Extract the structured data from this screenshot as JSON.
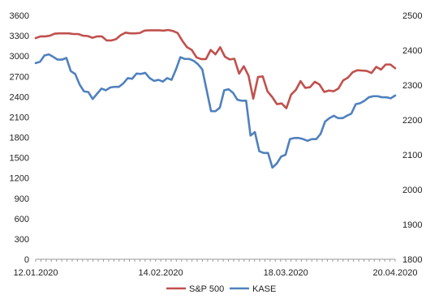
{
  "chart_data": {
    "type": "line",
    "x_tick_labels": [
      "12.01.2020",
      "14.02.2020",
      "18.03.2020",
      "20.04.2020"
    ],
    "x_tick_index": [
      0,
      24,
      48,
      69
    ],
    "y_left": {
      "ylim": [
        0,
        3600
      ],
      "ticks": [
        0,
        300,
        600,
        900,
        1200,
        1500,
        1800,
        2100,
        2400,
        2700,
        3000,
        3300,
        3600
      ]
    },
    "y_right": {
      "ylim": [
        1800,
        2500
      ],
      "ticks": [
        1800,
        1900,
        2000,
        2100,
        2200,
        2300,
        2400,
        2500
      ]
    },
    "legend_position": "bottom-center",
    "grid": false,
    "series": [
      {
        "name": "S&P 500",
        "axis": "left",
        "color": "#c0504d",
        "values": [
          3265,
          3290,
          3290,
          3300,
          3330,
          3335,
          3335,
          3335,
          3325,
          3325,
          3300,
          3295,
          3270,
          3290,
          3290,
          3230,
          3230,
          3250,
          3310,
          3345,
          3335,
          3335,
          3340,
          3375,
          3380,
          3380,
          3380,
          3375,
          3385,
          3370,
          3340,
          3225,
          3130,
          3090,
          2980,
          2955,
          2955,
          3090,
          3025,
          3130,
          2990,
          2950,
          2960,
          2740,
          2850,
          2710,
          2370,
          2690,
          2700,
          2480,
          2395,
          2290,
          2300,
          2230,
          2430,
          2500,
          2630,
          2530,
          2540,
          2620,
          2580,
          2470,
          2490,
          2480,
          2520,
          2640,
          2680,
          2760,
          2790,
          2785,
          2780,
          2750,
          2840,
          2800,
          2875,
          2875,
          2820
        ]
      },
      {
        "name": "KASE",
        "axis": "right",
        "color": "#4f81bd",
        "values": [
          2363,
          2367,
          2385,
          2388,
          2381,
          2373,
          2373,
          2378,
          2340,
          2332,
          2302,
          2282,
          2280,
          2260,
          2275,
          2290,
          2285,
          2293,
          2295,
          2295,
          2305,
          2320,
          2318,
          2333,
          2332,
          2335,
          2320,
          2312,
          2315,
          2310,
          2320,
          2315,
          2345,
          2380,
          2375,
          2375,
          2370,
          2360,
          2345,
          2285,
          2225,
          2225,
          2235,
          2285,
          2288,
          2278,
          2258,
          2255,
          2255,
          2155,
          2165,
          2110,
          2105,
          2105,
          2063,
          2075,
          2095,
          2100,
          2145,
          2148,
          2148,
          2145,
          2140,
          2145,
          2145,
          2160,
          2195,
          2205,
          2212,
          2205,
          2205,
          2212,
          2218,
          2245,
          2248,
          2255,
          2265,
          2268,
          2268,
          2265,
          2265,
          2262,
          2270
        ]
      }
    ]
  }
}
